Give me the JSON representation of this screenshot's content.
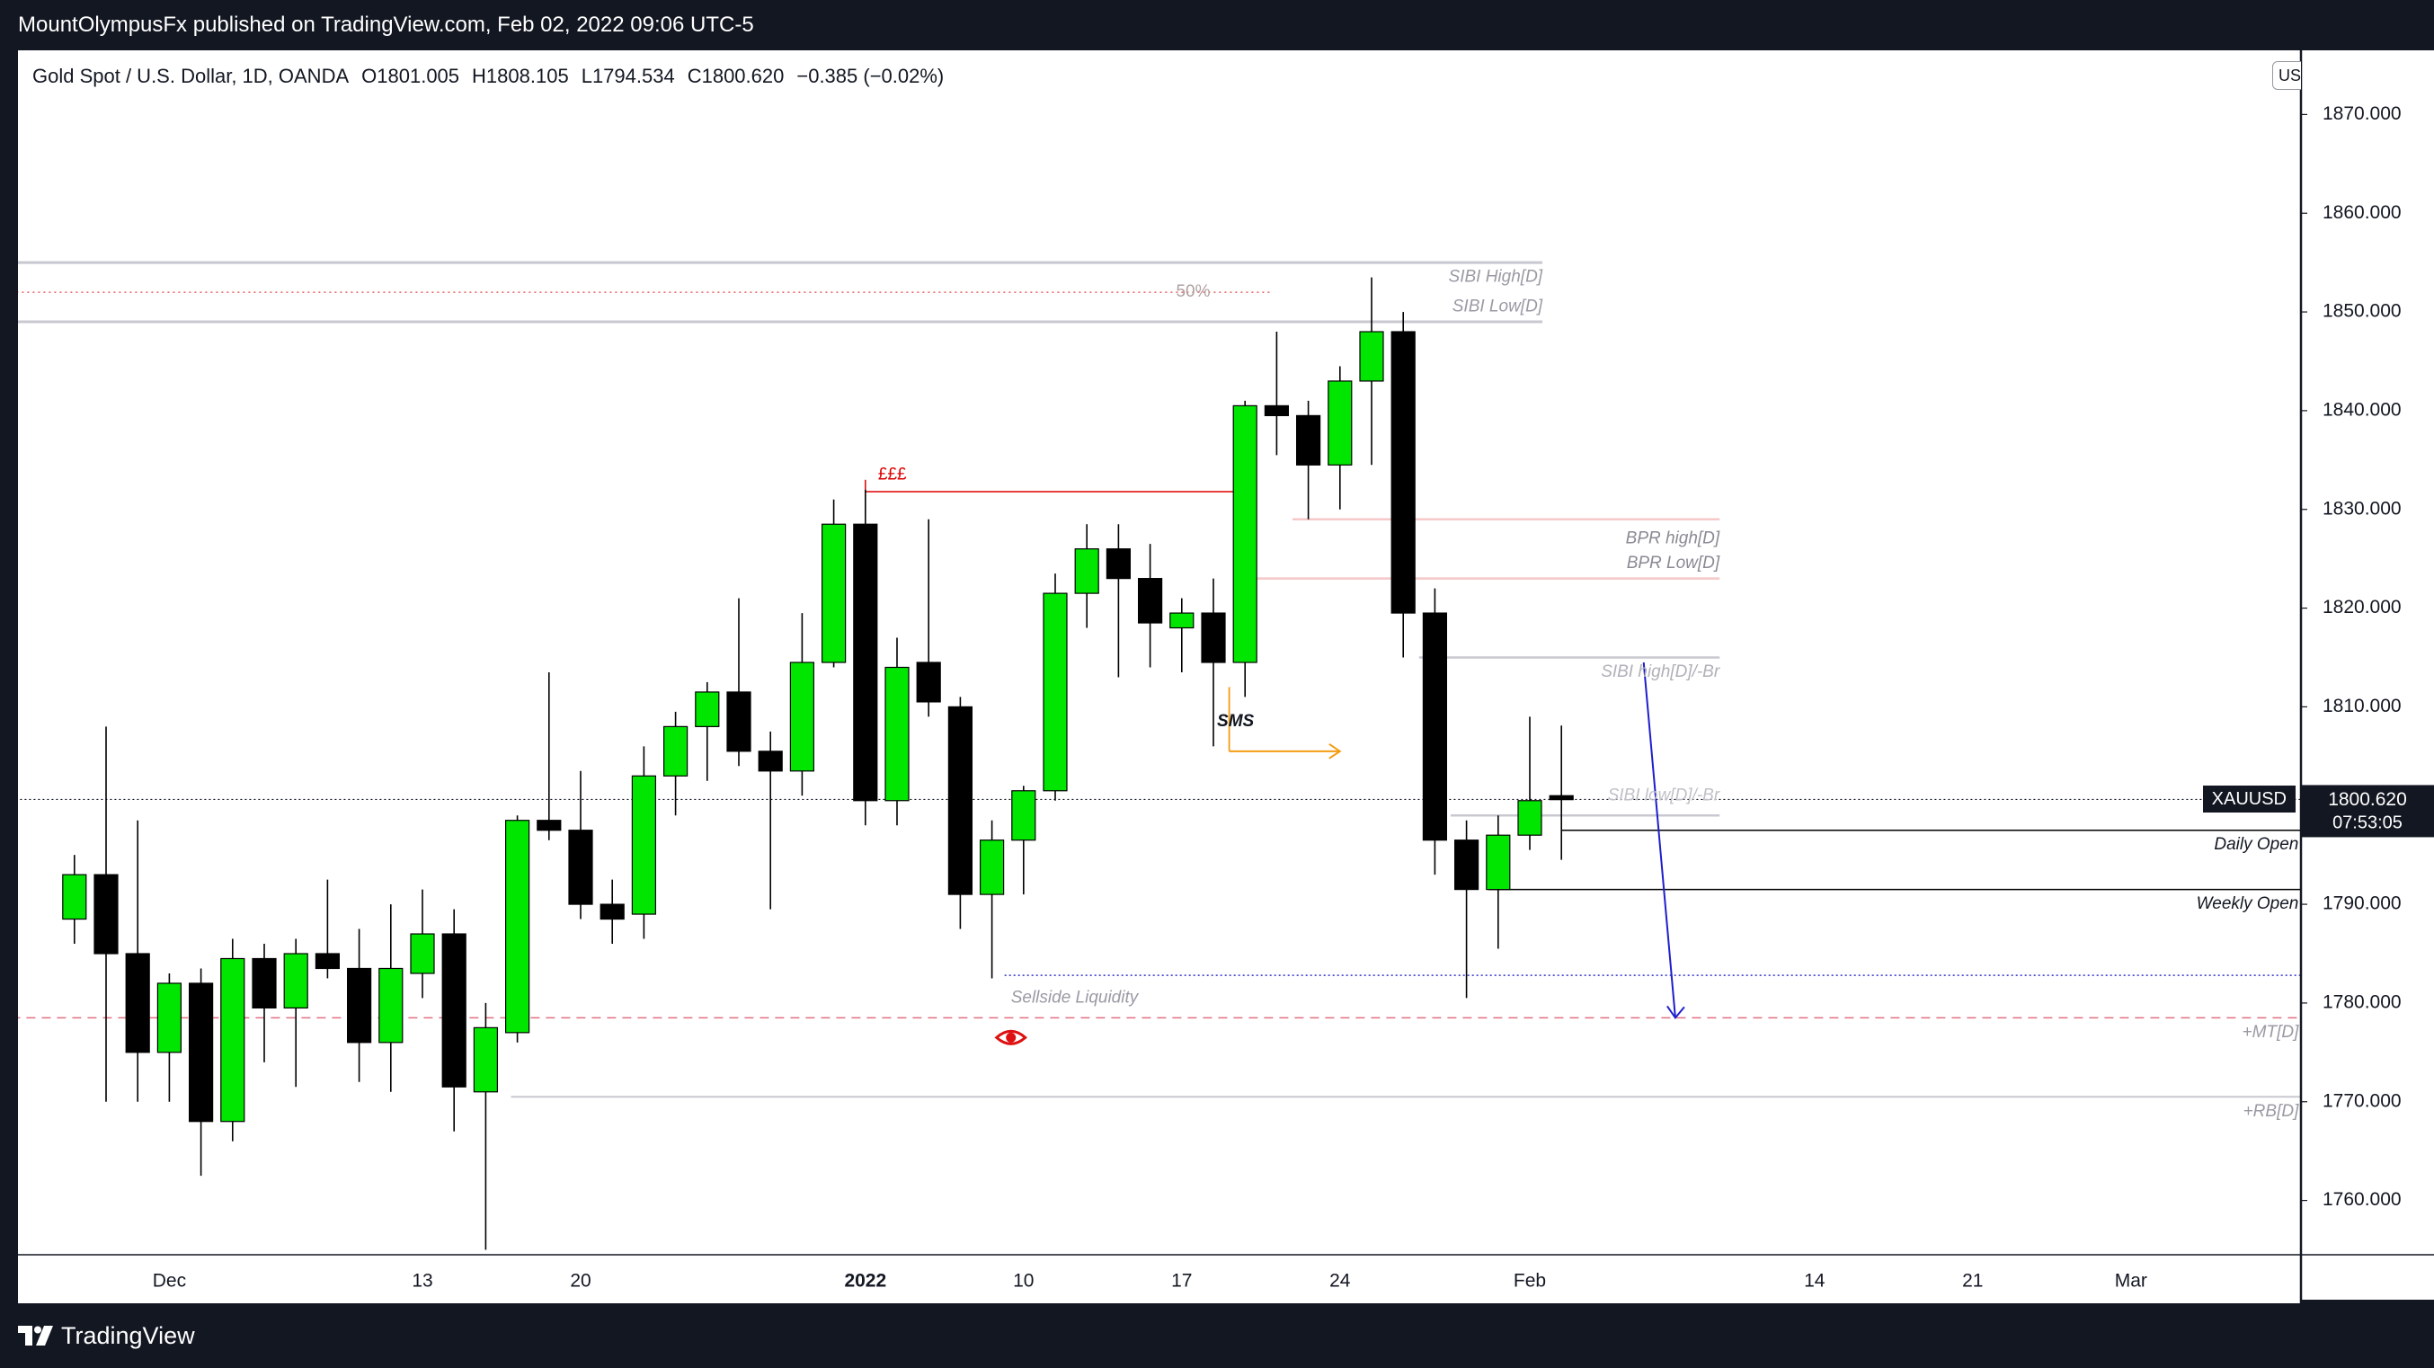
{
  "publisher_line": "MountOlympusFx published on TradingView.com, Feb 02, 2022 09:06 UTC-5",
  "header": {
    "symbol": "Gold Spot / U.S. Dollar, 1D, OANDA",
    "open_label": "O",
    "open": "1801.005",
    "high_label": "H",
    "high": "1808.105",
    "low_label": "L",
    "low": "1794.534",
    "close_label": "C",
    "close": "1800.620",
    "change": "−0.385 (−0.02%)"
  },
  "currency_badge": "USD",
  "price_tag": {
    "symbol": "XAUUSD",
    "price": "1800.620",
    "countdown": "07:53:05"
  },
  "branding": "TradingView",
  "colors": {
    "up": "#00e600",
    "down": "#000000",
    "background": "#131722",
    "chart_bg": "#ffffff",
    "sibi": "#c8c8d0",
    "bpr": "#f6c8c8",
    "liquidity_line": "#3333cc",
    "target_line": "#e07080",
    "arrow": "#1e1ecc",
    "sms_arrow": "#f39c12",
    "eee_line": "#dd0000"
  },
  "chart_data": {
    "type": "candlestick",
    "title": "Gold Spot / U.S. Dollar, 1D, OANDA",
    "ylim": [
      1754.5,
      1876.5
    ],
    "y_ticks": [
      "1760.000",
      "1770.000",
      "1780.000",
      "1790.000",
      "1800.000",
      "1810.000",
      "1820.000",
      "1830.000",
      "1840.000",
      "1850.000",
      "1860.000",
      "1870.000"
    ],
    "y_tick_values": [
      1760,
      1770,
      1780,
      1790,
      1800,
      1810,
      1820,
      1830,
      1840,
      1850,
      1860,
      1870
    ],
    "x_labels": [
      {
        "label": "Dec",
        "index": 2
      },
      {
        "label": "13",
        "index": 10
      },
      {
        "label": "20",
        "index": 15
      },
      {
        "label": "2022",
        "index": 24,
        "bold": true
      },
      {
        "label": "10",
        "index": 29
      },
      {
        "label": "17",
        "index": 34
      },
      {
        "label": "24",
        "index": 39
      },
      {
        "label": "Feb",
        "index": 45
      },
      {
        "label": "14",
        "index": 54
      },
      {
        "label": "21",
        "index": 59
      },
      {
        "label": "Mar",
        "index": 64
      }
    ],
    "candles": [
      {
        "i": -1,
        "o": 1788.5,
        "h": 1795.0,
        "l": 1786.0,
        "c": 1793.0
      },
      {
        "i": 0,
        "o": 1793.0,
        "h": 1808.0,
        "l": 1770.0,
        "c": 1785.0
      },
      {
        "i": 1,
        "o": 1785.0,
        "h": 1798.5,
        "l": 1770.0,
        "c": 1775.0
      },
      {
        "i": 2,
        "o": 1775.0,
        "h": 1783.0,
        "l": 1770.0,
        "c": 1782.0
      },
      {
        "i": 3,
        "o": 1782.0,
        "h": 1783.5,
        "l": 1762.5,
        "c": 1768.0
      },
      {
        "i": 4,
        "o": 1768.0,
        "h": 1786.5,
        "l": 1766.0,
        "c": 1784.5
      },
      {
        "i": 5,
        "o": 1784.5,
        "h": 1786.0,
        "l": 1774.0,
        "c": 1779.5
      },
      {
        "i": 6,
        "o": 1779.5,
        "h": 1786.5,
        "l": 1771.5,
        "c": 1785.0
      },
      {
        "i": 7,
        "o": 1785.0,
        "h": 1792.5,
        "l": 1782.5,
        "c": 1783.5
      },
      {
        "i": 8,
        "o": 1783.5,
        "h": 1787.5,
        "l": 1772.0,
        "c": 1776.0
      },
      {
        "i": 9,
        "o": 1776.0,
        "h": 1790.0,
        "l": 1771.0,
        "c": 1783.5
      },
      {
        "i": 10,
        "o": 1783.0,
        "h": 1791.5,
        "l": 1780.5,
        "c": 1787.0
      },
      {
        "i": 11,
        "o": 1787.0,
        "h": 1789.5,
        "l": 1767.0,
        "c": 1771.5
      },
      {
        "i": 12,
        "o": 1771.0,
        "h": 1780.0,
        "l": 1755.0,
        "c": 1777.5
      },
      {
        "i": 13,
        "o": 1777.0,
        "h": 1799.0,
        "l": 1776.0,
        "c": 1798.5
      },
      {
        "i": 14,
        "o": 1798.5,
        "h": 1813.5,
        "l": 1796.5,
        "c": 1797.5
      },
      {
        "i": 15,
        "o": 1797.5,
        "h": 1803.5,
        "l": 1788.5,
        "c": 1790.0
      },
      {
        "i": 16,
        "o": 1790.0,
        "h": 1792.5,
        "l": 1786.0,
        "c": 1788.5
      },
      {
        "i": 17,
        "o": 1789.0,
        "h": 1806.0,
        "l": 1786.5,
        "c": 1803.0
      },
      {
        "i": 18,
        "o": 1803.0,
        "h": 1809.5,
        "l": 1799.0,
        "c": 1808.0
      },
      {
        "i": 19,
        "o": 1808.0,
        "h": 1812.5,
        "l": 1802.5,
        "c": 1811.5
      },
      {
        "i": 20,
        "o": 1811.5,
        "h": 1821.0,
        "l": 1804.0,
        "c": 1805.5
      },
      {
        "i": 21,
        "o": 1805.5,
        "h": 1807.5,
        "l": 1789.5,
        "c": 1803.5
      },
      {
        "i": 22,
        "o": 1803.5,
        "h": 1819.5,
        "l": 1801.0,
        "c": 1814.5
      },
      {
        "i": 23,
        "o": 1814.5,
        "h": 1831.0,
        "l": 1814.0,
        "c": 1828.5
      },
      {
        "i": 24,
        "o": 1828.5,
        "h": 1832.0,
        "l": 1798.0,
        "c": 1800.5
      },
      {
        "i": 25,
        "o": 1800.5,
        "h": 1817.0,
        "l": 1798.0,
        "c": 1814.0
      },
      {
        "i": 26,
        "o": 1814.5,
        "h": 1829.0,
        "l": 1809.0,
        "c": 1810.5
      },
      {
        "i": 27,
        "o": 1810.0,
        "h": 1811.0,
        "l": 1787.5,
        "c": 1791.0
      },
      {
        "i": 28,
        "o": 1791.0,
        "h": 1798.5,
        "l": 1782.5,
        "c": 1796.5
      },
      {
        "i": 29,
        "o": 1796.5,
        "h": 1802.0,
        "l": 1791.0,
        "c": 1801.5
      },
      {
        "i": 30,
        "o": 1801.5,
        "h": 1823.5,
        "l": 1800.5,
        "c": 1821.5
      },
      {
        "i": 31,
        "o": 1821.5,
        "h": 1828.5,
        "l": 1818.0,
        "c": 1826.0
      },
      {
        "i": 32,
        "o": 1826.0,
        "h": 1828.5,
        "l": 1813.0,
        "c": 1823.0
      },
      {
        "i": 33,
        "o": 1823.0,
        "h": 1826.5,
        "l": 1814.0,
        "c": 1818.5
      },
      {
        "i": 34,
        "o": 1818.0,
        "h": 1821.0,
        "l": 1813.5,
        "c": 1819.5
      },
      {
        "i": 35,
        "o": 1819.5,
        "h": 1823.0,
        "l": 1806.0,
        "c": 1814.5
      },
      {
        "i": 36,
        "o": 1814.5,
        "h": 1841.0,
        "l": 1811.0,
        "c": 1840.5
      },
      {
        "i": 37,
        "o": 1840.5,
        "h": 1848.0,
        "l": 1835.5,
        "c": 1839.5
      },
      {
        "i": 38,
        "o": 1839.5,
        "h": 1841.0,
        "l": 1829.0,
        "c": 1834.5
      },
      {
        "i": 39,
        "o": 1834.5,
        "h": 1844.5,
        "l": 1830.0,
        "c": 1843.0
      },
      {
        "i": 40,
        "o": 1843.0,
        "h": 1853.5,
        "l": 1834.5,
        "c": 1848.0
      },
      {
        "i": 41,
        "o": 1848.0,
        "h": 1850.0,
        "l": 1815.0,
        "c": 1819.5
      },
      {
        "i": 42,
        "o": 1819.5,
        "h": 1822.0,
        "l": 1793.0,
        "c": 1796.5
      },
      {
        "i": 43,
        "o": 1796.5,
        "h": 1798.5,
        "l": 1780.5,
        "c": 1791.5
      },
      {
        "i": 44,
        "o": 1791.5,
        "h": 1799.0,
        "l": 1785.5,
        "c": 1797.0
      },
      {
        "i": 45,
        "o": 1797.0,
        "h": 1809.0,
        "l": 1795.5,
        "c": 1800.5
      },
      {
        "i": 46,
        "o": 1801.0,
        "h": 1808.1,
        "l": 1794.5,
        "c": 1800.6
      }
    ],
    "levels": [
      {
        "name": "sibi-high-top",
        "price": 1855.0,
        "x1": -3,
        "x2": 45.4,
        "color": "#c8c8d0",
        "width": 3
      },
      {
        "name": "sibi-low-line",
        "price": 1849.0,
        "x1": -3,
        "x2": 45.4,
        "color": "#c8c8d0",
        "width": 3
      },
      {
        "name": "fifty-percent-line",
        "price": 1852.0,
        "x1": -3,
        "x2": 36.8,
        "color": "#e04040",
        "width": 1.2,
        "dash": "2,4"
      },
      {
        "name": "eee-line",
        "price": 1831.8,
        "x1": 24.0,
        "x2": 36.0,
        "color": "#dd0000",
        "width": 1.5
      },
      {
        "name": "bpr-high-line",
        "price": 1829.0,
        "x1": 37.5,
        "x2": 51.0,
        "color": "#f6c8c8",
        "width": 2.5
      },
      {
        "name": "bpr-low-line",
        "price": 1823.0,
        "x1": 36.0,
        "x2": 51.0,
        "color": "#f6c8c8",
        "width": 2.5
      },
      {
        "name": "sibi2-high-line",
        "price": 1815.0,
        "x1": 41.5,
        "x2": 51.0,
        "color": "#c8c8d0",
        "width": 2.5
      },
      {
        "name": "sibi2-low-line",
        "price": 1799.0,
        "x1": 42.5,
        "x2": 51.0,
        "color": "#c8c8d0",
        "width": 2.5
      },
      {
        "name": "current-price-line",
        "price": 1800.62,
        "x1": -3,
        "x2": 72,
        "color": "#131722",
        "width": 1.2,
        "dash": "2,3"
      },
      {
        "name": "daily-open-line",
        "price": 1797.5,
        "x1": 46.0,
        "x2": 72,
        "color": "#000000",
        "width": 1.5
      },
      {
        "name": "weekly-open-line",
        "price": 1791.5,
        "x1": 43.7,
        "x2": 72,
        "color": "#000000",
        "width": 1.5
      },
      {
        "name": "sellside-liquidity-line",
        "price": 1782.8,
        "x1": 28.4,
        "x2": 72,
        "color": "#3333cc",
        "width": 1.5,
        "dash": "2,3"
      },
      {
        "name": "mt-line",
        "price": 1778.5,
        "x1": -3,
        "x2": 72,
        "color": "#e07080",
        "width": 1.5,
        "dash": "10,7"
      },
      {
        "name": "rb-line",
        "price": 1770.5,
        "x1": 12.8,
        "x2": 72,
        "color": "#c8c8d0",
        "width": 2
      }
    ],
    "annotations": [
      {
        "name": "sibi-high-label",
        "text": "SIBI High[D]",
        "anchor_index": 45.4,
        "price": 1853.5,
        "color": "#9a9aa4",
        "align": "end",
        "italic": true
      },
      {
        "name": "sibi-low-label",
        "text": "SIBI Low[D]",
        "anchor_index": 45.4,
        "price": 1850.5,
        "color": "#9a9aa4",
        "align": "end",
        "italic": true
      },
      {
        "name": "fifty-percent-label",
        "text": "50%",
        "anchor_index": 34.9,
        "price": 1852.0,
        "color": "#b0a0a0",
        "align": "end",
        "italic": false
      },
      {
        "name": "eee-label",
        "text": "£££",
        "anchor_index": 24.4,
        "price": 1833.5,
        "color": "#dd0000",
        "align": "start",
        "italic": false
      },
      {
        "name": "bpr-high-label",
        "text": "BPR high[D]",
        "anchor_index": 51.0,
        "price": 1827.0,
        "color": "#8a8a94",
        "align": "end",
        "italic": true
      },
      {
        "name": "bpr-low-label",
        "text": "BPR Low[D]",
        "anchor_index": 51.0,
        "price": 1824.5,
        "color": "#8a8a94",
        "align": "end",
        "italic": true
      },
      {
        "name": "sibi2-high-label",
        "text": "SIBI high[D]/-Br",
        "anchor_index": 51.0,
        "price": 1813.5,
        "color": "#b0b0b8",
        "align": "end",
        "italic": true
      },
      {
        "name": "sibi2-low-label",
        "text": "SIBI low[D]/-Br",
        "anchor_index": 51.0,
        "price": 1801.0,
        "color": "#c0c0c8",
        "align": "end",
        "italic": true
      },
      {
        "name": "sms-label",
        "text": "SMS",
        "anchor_index": 35.7,
        "price": 1808.5,
        "color": "#131722",
        "align": "middle",
        "italic": true,
        "bold": true
      },
      {
        "name": "daily-open-label",
        "text": "Daily Open",
        "anchor_index": 69.3,
        "price": 1796.0,
        "color": "#131722",
        "align": "end",
        "italic": true
      },
      {
        "name": "weekly-open-label",
        "text": "Weekly Open",
        "anchor_index": 69.3,
        "price": 1790.0,
        "color": "#131722",
        "align": "end",
        "italic": true
      },
      {
        "name": "sellside-liquidity-label",
        "text": "Sellside Liquidity",
        "anchor_index": 28.6,
        "price": 1780.5,
        "color": "#9a9aa4",
        "align": "start",
        "italic": true
      },
      {
        "name": "mt-label",
        "text": "+MT[D]",
        "anchor_index": 69.3,
        "price": 1777.0,
        "color": "#9a9aa4",
        "align": "end",
        "italic": true
      },
      {
        "name": "rb-label",
        "text": "+RB[D]",
        "anchor_index": 69.3,
        "price": 1769.0,
        "color": "#9a9aa4",
        "align": "end",
        "italic": true
      }
    ],
    "sms_arrow": {
      "x1": 35.5,
      "x2": 39.0,
      "price": 1805.5,
      "stem_top": 1812.0
    },
    "projection_arrow": {
      "x1": 48.6,
      "p1": 1814.5,
      "x2": 49.6,
      "p2": 1778.5
    },
    "eee_marker": {
      "index": 24.0,
      "top": 1833.0,
      "bottom": 1831.8
    },
    "eye_icon": {
      "index": 28.6,
      "price": 1776.5
    }
  }
}
